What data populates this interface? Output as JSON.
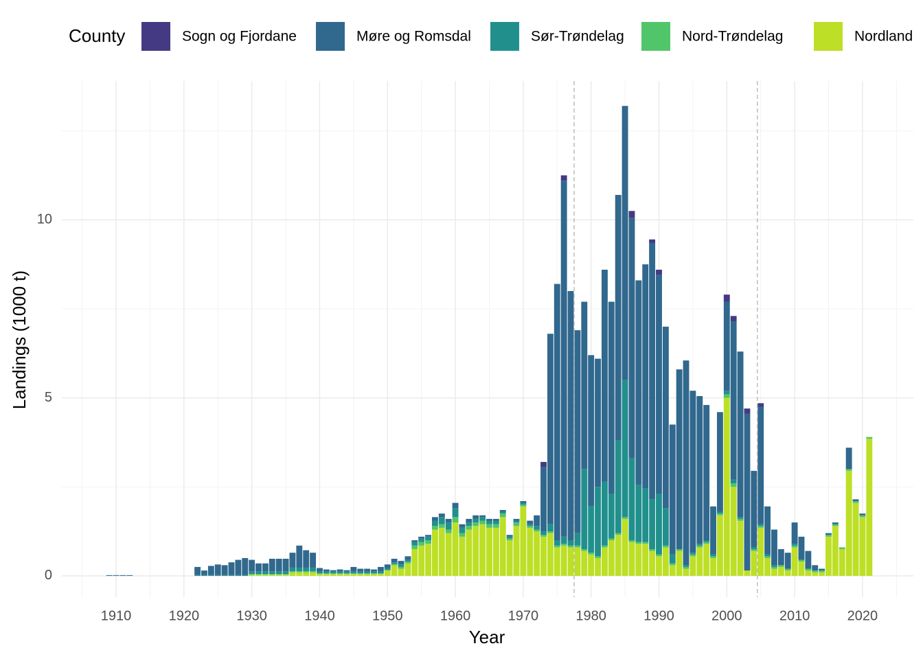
{
  "chart_data": {
    "type": "stacked_bar",
    "xlabel": "Year",
    "ylabel": "Landings (1000 t)",
    "legend_title": "County",
    "legend_position": "top",
    "x": [
      1909,
      1910,
      1911,
      1912,
      1922,
      1923,
      1924,
      1925,
      1926,
      1927,
      1928,
      1929,
      1930,
      1931,
      1932,
      1933,
      1934,
      1935,
      1936,
      1937,
      1938,
      1939,
      1940,
      1941,
      1942,
      1943,
      1944,
      1945,
      1946,
      1947,
      1948,
      1949,
      1950,
      1951,
      1952,
      1953,
      1954,
      1955,
      1956,
      1957,
      1958,
      1959,
      1960,
      1961,
      1962,
      1963,
      1964,
      1965,
      1966,
      1967,
      1968,
      1969,
      1970,
      1971,
      1972,
      1973,
      1974,
      1975,
      1976,
      1977,
      1978,
      1979,
      1980,
      1981,
      1982,
      1983,
      1984,
      1985,
      1986,
      1987,
      1988,
      1989,
      1990,
      1991,
      1992,
      1993,
      1994,
      1995,
      1996,
      1997,
      1998,
      1999,
      2000,
      2001,
      2002,
      2003,
      2004,
      2005,
      2006,
      2007,
      2008,
      2009,
      2010,
      2011,
      2012,
      2013,
      2014,
      2015,
      2016,
      2017,
      2018,
      2019,
      2020,
      2021
    ],
    "series": [
      {
        "name": "Sogn og Fjordane",
        "color": "#443a83",
        "values": [
          0,
          0,
          0,
          0,
          0,
          0,
          0,
          0,
          0,
          0,
          0,
          0,
          0,
          0,
          0,
          0,
          0,
          0,
          0,
          0,
          0,
          0,
          0,
          0,
          0,
          0,
          0,
          0,
          0,
          0,
          0,
          0,
          0,
          0,
          0,
          0,
          0,
          0,
          0,
          0,
          0,
          0,
          0,
          0,
          0,
          0,
          0,
          0,
          0,
          0,
          0,
          0,
          0,
          0,
          0,
          0.15,
          0,
          0,
          0.15,
          0,
          0,
          0,
          0,
          0,
          0,
          0,
          0,
          0,
          0.2,
          0,
          0,
          0.1,
          0.15,
          0,
          0,
          0,
          0,
          0,
          0,
          0,
          0,
          0,
          0.2,
          0.15,
          0,
          0.15,
          0,
          0.1,
          0,
          0,
          0,
          0,
          0,
          0,
          0,
          0,
          0,
          0,
          0,
          0,
          0,
          0,
          0,
          0
        ]
      },
      {
        "name": "Møre og Romsdal",
        "color": "#31688e",
        "values": [
          0.02,
          0.02,
          0.02,
          0.02,
          0.23,
          0.13,
          0.26,
          0.3,
          0.28,
          0.36,
          0.43,
          0.48,
          0.32,
          0.22,
          0.22,
          0.35,
          0.35,
          0.35,
          0.42,
          0.62,
          0.49,
          0.42,
          0.1,
          0.06,
          0.04,
          0.06,
          0.04,
          0.13,
          0.08,
          0.08,
          0.06,
          0.13,
          0.1,
          0.1,
          0.1,
          0.1,
          0.05,
          0.05,
          0.05,
          0.1,
          0.1,
          0.1,
          0.15,
          0.1,
          0.1,
          0.1,
          0.05,
          0.05,
          0.05,
          0.05,
          0.05,
          0.05,
          0.05,
          0.1,
          0.3,
          1.8,
          5.35,
          7.2,
          10.0,
          7.0,
          5.7,
          4.7,
          4.25,
          3.6,
          5.95,
          5.4,
          6.9,
          7.7,
          6.75,
          5.75,
          6.3,
          7.2,
          6.15,
          5.1,
          3.65,
          5.05,
          5.75,
          4.55,
          4.15,
          3.8,
          1.35,
          2.8,
          2.5,
          4.45,
          4.65,
          4.4,
          2.15,
          3.3,
          1.35,
          1.0,
          0.45,
          0.45,
          0.6,
          0.65,
          0.5,
          0.15,
          0.05,
          0.05,
          0.05,
          0,
          0.6,
          0.05,
          0.05,
          0
        ]
      },
      {
        "name": "Sør-Trøndelag",
        "color": "#21908d",
        "values": [
          0,
          0,
          0,
          0,
          0.02,
          0.02,
          0.02,
          0.02,
          0.02,
          0.02,
          0.02,
          0.02,
          0.08,
          0.08,
          0.08,
          0.08,
          0.08,
          0.08,
          0.1,
          0.1,
          0.1,
          0.1,
          0.05,
          0.05,
          0.05,
          0.05,
          0.05,
          0.05,
          0.05,
          0.05,
          0.05,
          0.05,
          0.05,
          0.05,
          0.07,
          0.05,
          0.1,
          0.1,
          0.1,
          0.15,
          0.2,
          0.2,
          0.25,
          0.15,
          0.1,
          0.1,
          0.1,
          0.1,
          0.1,
          0.05,
          0.05,
          0.05,
          0.05,
          0.05,
          0.1,
          0.1,
          0.2,
          0.15,
          0.2,
          0.15,
          0.35,
          2.25,
          1.3,
          1.95,
          1.8,
          1.25,
          2.6,
          3.85,
          2.3,
          1.6,
          1.5,
          1.4,
          1.7,
          1.05,
          0.25,
          0,
          0.05,
          0.05,
          0.05,
          0.05,
          0.05,
          0.05,
          0.1,
          0.1,
          0.05,
          0,
          0.05,
          0.05,
          0.05,
          0.05,
          0,
          0,
          0.05,
          0,
          0,
          0,
          0,
          0,
          0,
          0,
          0,
          0,
          0,
          0
        ]
      },
      {
        "name": "Nord-Trøndelag",
        "color": "#51c56a",
        "values": [
          0,
          0,
          0,
          0,
          0,
          0,
          0,
          0,
          0,
          0,
          0,
          0,
          0.02,
          0.02,
          0.02,
          0.02,
          0.02,
          0.02,
          0.03,
          0.03,
          0.03,
          0.03,
          0.02,
          0.02,
          0.02,
          0.02,
          0.02,
          0.02,
          0.02,
          0.02,
          0.02,
          0.02,
          0.02,
          0.03,
          0.05,
          0.05,
          0.1,
          0.1,
          0.1,
          0.1,
          0.1,
          0.1,
          0.15,
          0.1,
          0.1,
          0.1,
          0.1,
          0.1,
          0.1,
          0.1,
          0.05,
          0.1,
          0.05,
          0.05,
          0.05,
          0.05,
          0.05,
          0.05,
          0.05,
          0.05,
          0.05,
          0.05,
          0.05,
          0.05,
          0.05,
          0.05,
          0.05,
          0.05,
          0.05,
          0.05,
          0.05,
          0.05,
          0.05,
          0.05,
          0.05,
          0.05,
          0.05,
          0.05,
          0.05,
          0.05,
          0.05,
          0.05,
          0.1,
          0.1,
          0.05,
          0,
          0.05,
          0.05,
          0.05,
          0.05,
          0.05,
          0.05,
          0.05,
          0.05,
          0.05,
          0.05,
          0.05,
          0.05,
          0.05,
          0.05,
          0.05,
          0.05,
          0.05,
          0.05
        ]
      },
      {
        "name": "Nordland",
        "color": "#bddf26",
        "values": [
          0,
          0,
          0,
          0,
          0,
          0,
          0,
          0,
          0,
          0,
          0,
          0,
          0.03,
          0.03,
          0.03,
          0.03,
          0.03,
          0.03,
          0.1,
          0.1,
          0.1,
          0.1,
          0.05,
          0.05,
          0.05,
          0.05,
          0.05,
          0.05,
          0.05,
          0.05,
          0.05,
          0.05,
          0.15,
          0.3,
          0.2,
          0.35,
          0.75,
          0.85,
          0.9,
          1.3,
          1.35,
          1.2,
          1.5,
          1.1,
          1.3,
          1.4,
          1.45,
          1.35,
          1.35,
          1.65,
          1.0,
          1.4,
          1.95,
          1.35,
          1.25,
          1.1,
          1.2,
          0.8,
          0.85,
          0.8,
          0.8,
          0.7,
          0.6,
          0.5,
          0.8,
          1.0,
          1.15,
          1.6,
          0.95,
          0.9,
          0.9,
          0.7,
          0.55,
          0.8,
          0.3,
          0.7,
          0.2,
          0.55,
          0.8,
          0.9,
          0.5,
          1.7,
          5.0,
          2.5,
          1.55,
          0.15,
          0.7,
          1.35,
          0.5,
          0.2,
          0.25,
          0.15,
          0.8,
          0.4,
          0.15,
          0.1,
          0.1,
          1.1,
          1.4,
          0.75,
          2.95,
          2.05,
          1.65,
          3.85
        ]
      }
    ],
    "xlim": [
      1902,
      2027.5
    ],
    "xticks": [
      1910,
      1920,
      1930,
      1940,
      1950,
      1960,
      1970,
      1980,
      1990,
      2000,
      2010,
      2020
    ],
    "xminor": [
      1905,
      1915,
      1925,
      1935,
      1945,
      1955,
      1965,
      1975,
      1985,
      1995,
      2005,
      2015,
      2025
    ],
    "ylim": [
      -0.6,
      13.9
    ],
    "yticks": [
      0,
      5,
      10
    ],
    "yminor": [
      2.5,
      7.5,
      12.5
    ],
    "vlines": [
      1977.5,
      2004.5
    ],
    "grid": true
  }
}
